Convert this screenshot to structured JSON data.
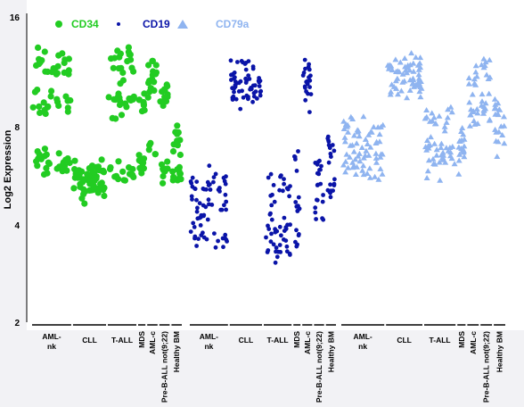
{
  "chart_data": {
    "type": "scatter",
    "title": "",
    "ylabel": "Log2 Expression",
    "y_scale": "log2",
    "ylim": [
      2,
      16
    ],
    "y_ticks": [
      "2",
      "4",
      "8",
      "16"
    ],
    "y_tick_values": [
      2,
      4,
      8,
      16
    ],
    "legend_position": "top",
    "groups": [
      "AML-nk",
      "CLL",
      "T-ALL",
      "MDS",
      "AML-c",
      "Pre-B-ALL not(9;22)",
      "Healthy BM"
    ],
    "series": [
      {
        "name": "CD34",
        "color": "#22cc22",
        "marker": "circle",
        "groups": [
          {
            "group": "AML-nk",
            "values": [
              5.9,
              9.0,
              11.5
            ]
          },
          {
            "group": "CLL",
            "values": [
              5.0,
              5.5
            ]
          },
          {
            "group": "T-ALL",
            "values": [
              5.6,
              9.0,
              11.8
            ]
          },
          {
            "group": "MDS",
            "values": [
              6.0,
              9.0
            ]
          },
          {
            "group": "AML-c",
            "values": [
              6.5,
              10.0,
              11.5
            ]
          },
          {
            "group": "Pre-B-ALL not(9;22)",
            "values": [
              5.5,
              9.5
            ]
          },
          {
            "group": "Healthy BM",
            "values": [
              5.5,
              7.0
            ]
          }
        ]
      },
      {
        "name": "CD19",
        "color": "#0a14a8",
        "marker": "dot",
        "groups": [
          {
            "group": "AML-nk",
            "values": [
              3.5,
              4.2,
              5.0
            ]
          },
          {
            "group": "CLL",
            "values": [
              9.5,
              10.2,
              11.0
            ]
          },
          {
            "group": "T-ALL",
            "values": [
              3.3,
              3.9,
              5.0
            ]
          },
          {
            "group": "MDS",
            "values": [
              3.6,
              4.3,
              6.0
            ]
          },
          {
            "group": "AML-c",
            "values": [
              9.5,
              10.5,
              11.5
            ]
          },
          {
            "group": "Pre-B-ALL not(9;22)",
            "values": [
              4.5,
              5.5
            ]
          },
          {
            "group": "Healthy BM",
            "values": [
              5.0,
              6.5
            ]
          }
        ]
      },
      {
        "name": "CD79a",
        "color": "#8fb4f0",
        "marker": "triangle",
        "groups": [
          {
            "group": "AML-nk",
            "values": [
              5.8,
              6.5,
              7.5
            ]
          },
          {
            "group": "CLL",
            "values": [
              10.0,
              11.0,
              11.5
            ]
          },
          {
            "group": "T-ALL",
            "values": [
              5.9,
              6.6,
              8.0
            ]
          },
          {
            "group": "MDS",
            "values": [
              6.0,
              7.0
            ]
          },
          {
            "group": "AML-c",
            "values": [
              8.0,
              10.5
            ]
          },
          {
            "group": "Pre-B-ALL not(9;22)",
            "values": [
              8.5,
              11.5
            ]
          },
          {
            "group": "Healthy BM",
            "values": [
              7.0,
              8.5
            ]
          }
        ]
      }
    ]
  }
}
